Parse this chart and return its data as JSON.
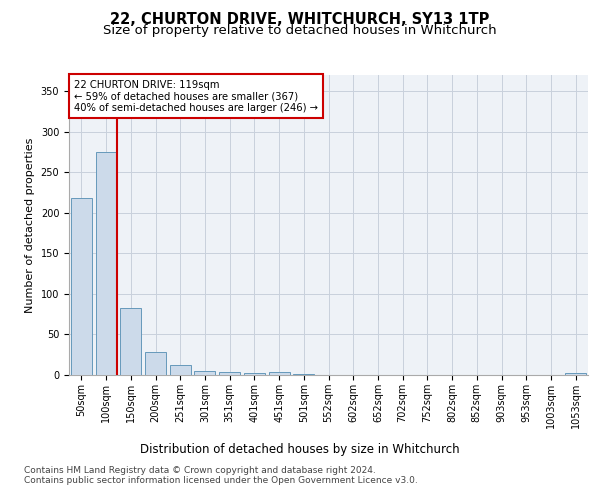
{
  "title": "22, CHURTON DRIVE, WHITCHURCH, SY13 1TP",
  "subtitle": "Size of property relative to detached houses in Whitchurch",
  "xlabel": "Distribution of detached houses by size in Whitchurch",
  "ylabel": "Number of detached properties",
  "categories": [
    "50sqm",
    "100sqm",
    "150sqm",
    "200sqm",
    "251sqm",
    "301sqm",
    "351sqm",
    "401sqm",
    "451sqm",
    "501sqm",
    "552sqm",
    "602sqm",
    "652sqm",
    "702sqm",
    "752sqm",
    "802sqm",
    "852sqm",
    "903sqm",
    "953sqm",
    "1003sqm",
    "1053sqm"
  ],
  "values": [
    218,
    275,
    83,
    28,
    12,
    5,
    4,
    3,
    4,
    1,
    0,
    0,
    0,
    0,
    0,
    0,
    0,
    0,
    0,
    0,
    3
  ],
  "bar_color": "#ccdaea",
  "bar_edge_color": "#6699bb",
  "vline_color": "#cc0000",
  "vline_x": 1.425,
  "annotation_text": "22 CHURTON DRIVE: 119sqm\n← 59% of detached houses are smaller (367)\n40% of semi-detached houses are larger (246) →",
  "annotation_box_facecolor": "#ffffff",
  "annotation_box_edgecolor": "#cc0000",
  "ylim": [
    0,
    370
  ],
  "yticks": [
    0,
    50,
    100,
    150,
    200,
    250,
    300,
    350
  ],
  "title_fontsize": 10.5,
  "subtitle_fontsize": 9.5,
  "tick_fontsize": 7,
  "ylabel_fontsize": 8,
  "xlabel_fontsize": 8.5,
  "footer1": "Contains HM Land Registry data © Crown copyright and database right 2024.",
  "footer2": "Contains public sector information licensed under the Open Government Licence v3.0.",
  "footer_fontsize": 6.5,
  "background_color": "#ffffff",
  "plot_bg_color": "#eef2f7",
  "grid_color": "#c8d0dc"
}
